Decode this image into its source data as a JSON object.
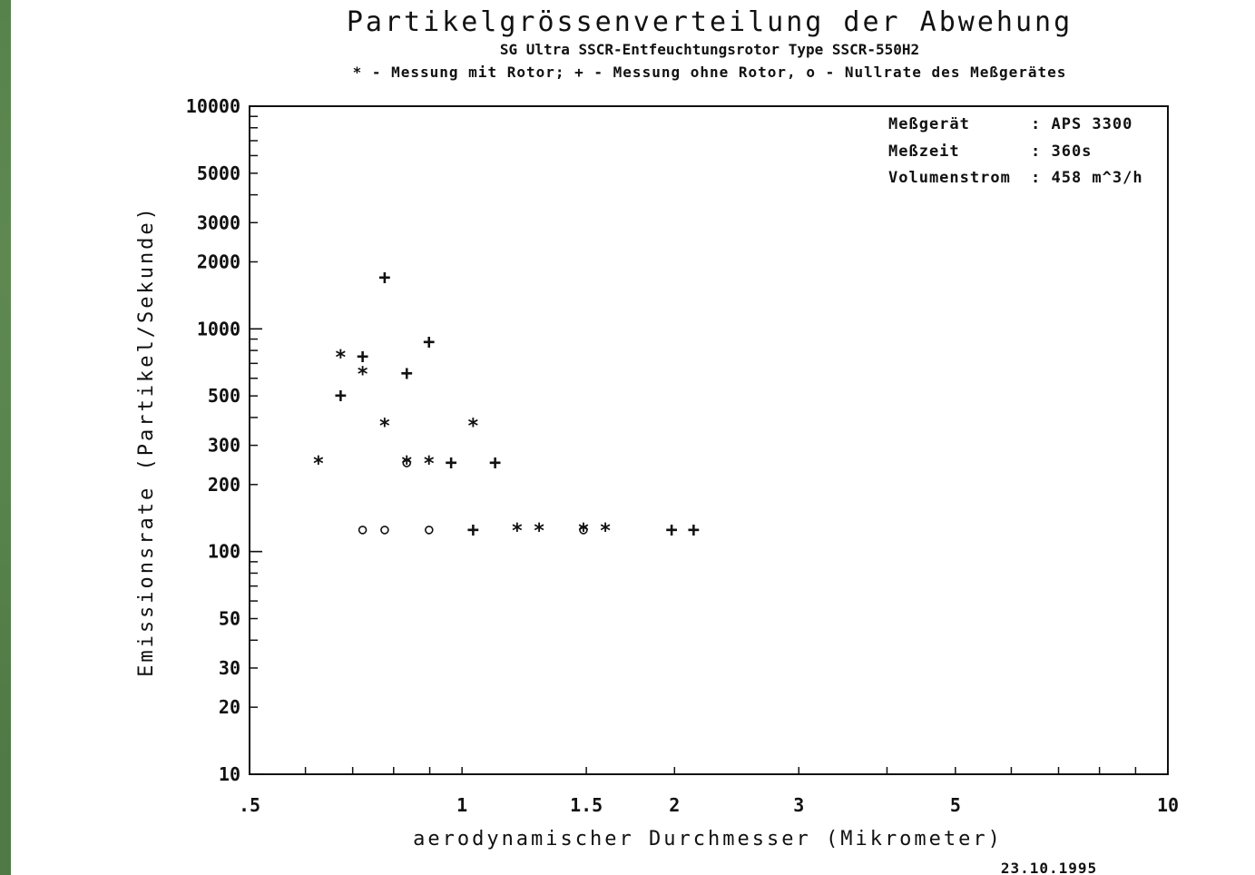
{
  "chart_data": {
    "type": "scatter",
    "title": "Partikelgrössenverteilung der Abwehung",
    "subtitle": "SG Ultra SSCR-Entfeuchtungsrotor Type SSCR-550H2",
    "legend_text": "* - Messung mit Rotor; + - Messung ohne Rotor, o - Nullrate des Meßgerätes",
    "xlabel": "aerodynamischer Durchmesser (Mikrometer)",
    "ylabel": "Emissionsrate (Partikel/Sekunde)",
    "x_scale": "log",
    "y_scale": "log",
    "xlim": [
      0.5,
      10
    ],
    "ylim": [
      10,
      10000
    ],
    "grid": false,
    "x_ticks": [
      {
        "value": 0.5,
        "label": ".5"
      },
      {
        "value": 1,
        "label": "1"
      },
      {
        "value": 1.5,
        "label": "1.5"
      },
      {
        "value": 2,
        "label": "2"
      },
      {
        "value": 3,
        "label": "3"
      },
      {
        "value": 5,
        "label": "5"
      },
      {
        "value": 10,
        "label": "10"
      }
    ],
    "y_ticks": [
      {
        "value": 10,
        "label": "10"
      },
      {
        "value": 20,
        "label": "20"
      },
      {
        "value": 30,
        "label": "30"
      },
      {
        "value": 50,
        "label": "50"
      },
      {
        "value": 100,
        "label": "100"
      },
      {
        "value": 200,
        "label": "200"
      },
      {
        "value": 300,
        "label": "300"
      },
      {
        "value": 500,
        "label": "500"
      },
      {
        "value": 1000,
        "label": "1000"
      },
      {
        "value": 2000,
        "label": "2000"
      },
      {
        "value": 3000,
        "label": "3000"
      },
      {
        "value": 5000,
        "label": "5000"
      },
      {
        "value": 10000,
        "label": "10000"
      }
    ],
    "info_box": [
      {
        "key": "Meßgerät",
        "value": ": APS 3300"
      },
      {
        "key": "Meßzeit",
        "value": ": 360s"
      },
      {
        "key": "Volumenstrom",
        "value": ": 458 m^3/h"
      }
    ],
    "date": "23.10.1995",
    "series": [
      {
        "marker": "*",
        "points": [
          {
            "x": 0.626,
            "y": 250
          },
          {
            "x": 0.673,
            "y": 750
          },
          {
            "x": 0.723,
            "y": 630
          },
          {
            "x": 0.777,
            "y": 370
          },
          {
            "x": 0.835,
            "y": 250
          },
          {
            "x": 0.898,
            "y": 250
          },
          {
            "x": 1.037,
            "y": 370
          },
          {
            "x": 1.197,
            "y": 125
          },
          {
            "x": 1.286,
            "y": 125
          },
          {
            "x": 1.486,
            "y": 125
          },
          {
            "x": 1.596,
            "y": 125
          }
        ]
      },
      {
        "marker": "+",
        "points": [
          {
            "x": 0.673,
            "y": 500
          },
          {
            "x": 0.723,
            "y": 750
          },
          {
            "x": 0.777,
            "y": 1700
          },
          {
            "x": 0.835,
            "y": 630
          },
          {
            "x": 0.898,
            "y": 870
          },
          {
            "x": 0.965,
            "y": 250
          },
          {
            "x": 1.037,
            "y": 125
          },
          {
            "x": 1.114,
            "y": 250
          },
          {
            "x": 1.981,
            "y": 125
          },
          {
            "x": 2.129,
            "y": 125
          }
        ]
      },
      {
        "marker": "o",
        "points": [
          {
            "x": 0.723,
            "y": 125
          },
          {
            "x": 0.777,
            "y": 125
          },
          {
            "x": 0.898,
            "y": 125
          },
          {
            "x": 0.835,
            "y": 250
          },
          {
            "x": 1.486,
            "y": 125
          }
        ]
      }
    ]
  }
}
